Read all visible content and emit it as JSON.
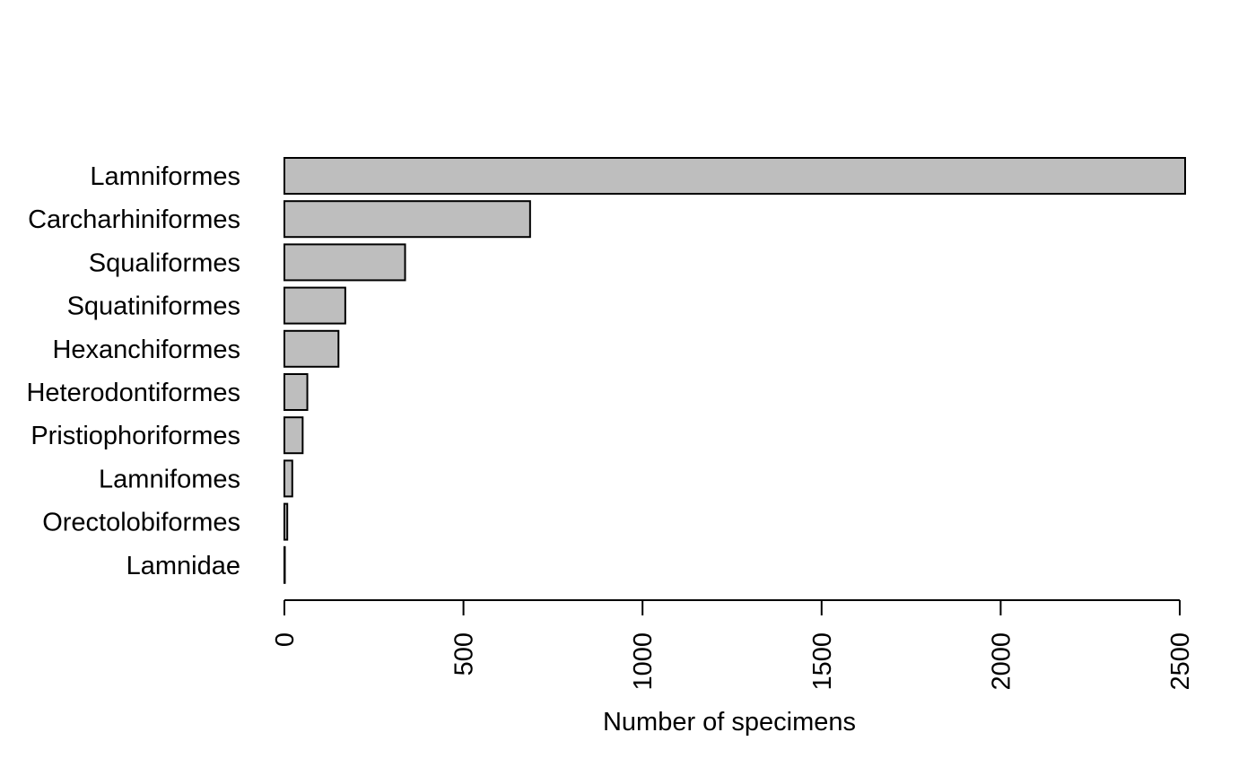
{
  "chart_data": {
    "type": "bar",
    "orientation": "horizontal",
    "title": "",
    "xlabel": "Number of specimens",
    "ylabel": "",
    "categories": [
      "Lamniformes",
      "Carcharhiniformes",
      "Squaliformes",
      "Squatiniformes",
      "Hexanchiformes",
      "Heterodontiformes",
      "Pristiophoriformes",
      "Lamnifomes",
      "Orectolobiformes",
      "Lamnidae"
    ],
    "values": [
      2515,
      686,
      337,
      170,
      151,
      64,
      51,
      22,
      8,
      1
    ],
    "xlim": [
      0,
      2500
    ],
    "ticks": [
      0,
      500,
      1000,
      1500,
      2000,
      2500
    ],
    "tick_labels": [
      "0",
      "500",
      "1000",
      "1500",
      "2000",
      "2500"
    ],
    "bar_color": "#bebebe",
    "edge_color": "#000000",
    "grid": false
  }
}
